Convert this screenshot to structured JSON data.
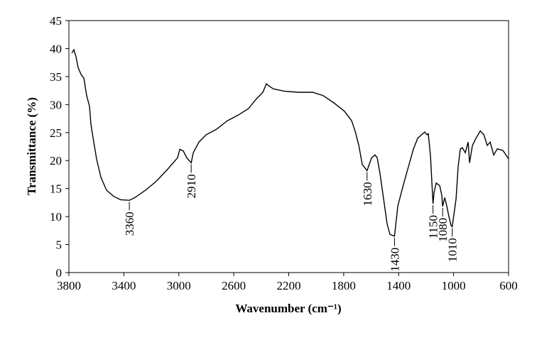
{
  "chart_data": {
    "type": "line",
    "xlabel": "Wavenumber  (cm⁻¹)",
    "ylabel": "Transmittance  (%)",
    "x": [
      3779,
      3764,
      3748,
      3733,
      3712,
      3691,
      3671,
      3650,
      3640,
      3619,
      3598,
      3567,
      3526,
      3474,
      3423,
      3360,
      3319,
      3242,
      3164,
      3087,
      3009,
      2993,
      2967,
      2942,
      2910,
      2895,
      2854,
      2802,
      2725,
      2647,
      2569,
      2492,
      2440,
      2388,
      2363,
      2337,
      2311,
      2233,
      2130,
      2026,
      1949,
      1871,
      1794,
      1742,
      1716,
      1690,
      1665,
      1630,
      1597,
      1572,
      1556,
      1535,
      1510,
      1484,
      1463,
      1430,
      1406,
      1365,
      1329,
      1292,
      1261,
      1225,
      1210,
      1194,
      1184,
      1168,
      1150,
      1142,
      1127,
      1101,
      1086,
      1080,
      1065,
      1050,
      1034,
      1018,
      1010,
      982,
      967,
      951,
      936,
      915,
      894,
      884,
      863,
      837,
      806,
      780,
      755,
      734,
      708,
      682,
      641,
      600
    ],
    "values": [
      39.2,
      39.8,
      38.5,
      36.6,
      35.4,
      34.7,
      31.6,
      29.7,
      26.5,
      23.3,
      20.2,
      17.0,
      14.7,
      13.6,
      13.0,
      12.9,
      13.4,
      14.7,
      16.3,
      18.3,
      20.5,
      22.0,
      21.7,
      20.5,
      19.6,
      21.4,
      23.3,
      24.6,
      25.6,
      27.1,
      28.1,
      29.3,
      30.9,
      32.2,
      33.7,
      33.2,
      32.8,
      32.4,
      32.2,
      32.2,
      31.6,
      30.3,
      28.8,
      27.1,
      25.2,
      22.7,
      19.3,
      18.2,
      20.5,
      21.0,
      20.5,
      17.6,
      13.2,
      8.7,
      6.8,
      6.5,
      11.9,
      15.7,
      18.9,
      22.1,
      24.0,
      24.8,
      25.1,
      24.6,
      24.8,
      20.8,
      12.3,
      14.4,
      16.0,
      15.5,
      13.8,
      11.8,
      13.4,
      11.9,
      10.0,
      8.4,
      8.2,
      13.2,
      18.9,
      22.1,
      22.3,
      21.4,
      23.3,
      19.6,
      22.7,
      24.0,
      25.3,
      24.6,
      22.7,
      23.3,
      21.0,
      22.1,
      21.8,
      20.3
    ],
    "color": "#000000",
    "peak_labels": [
      3360,
      2910,
      1630,
      1430,
      1150,
      1080,
      1010
    ],
    "xlim": [
      3800,
      600
    ],
    "xticks": [
      3800,
      3400,
      3000,
      2600,
      2200,
      1800,
      1400,
      1000,
      600
    ],
    "ylim": [
      0,
      45
    ],
    "yticks": [
      0,
      5,
      10,
      15,
      20,
      25,
      30,
      35,
      40,
      45
    ]
  }
}
